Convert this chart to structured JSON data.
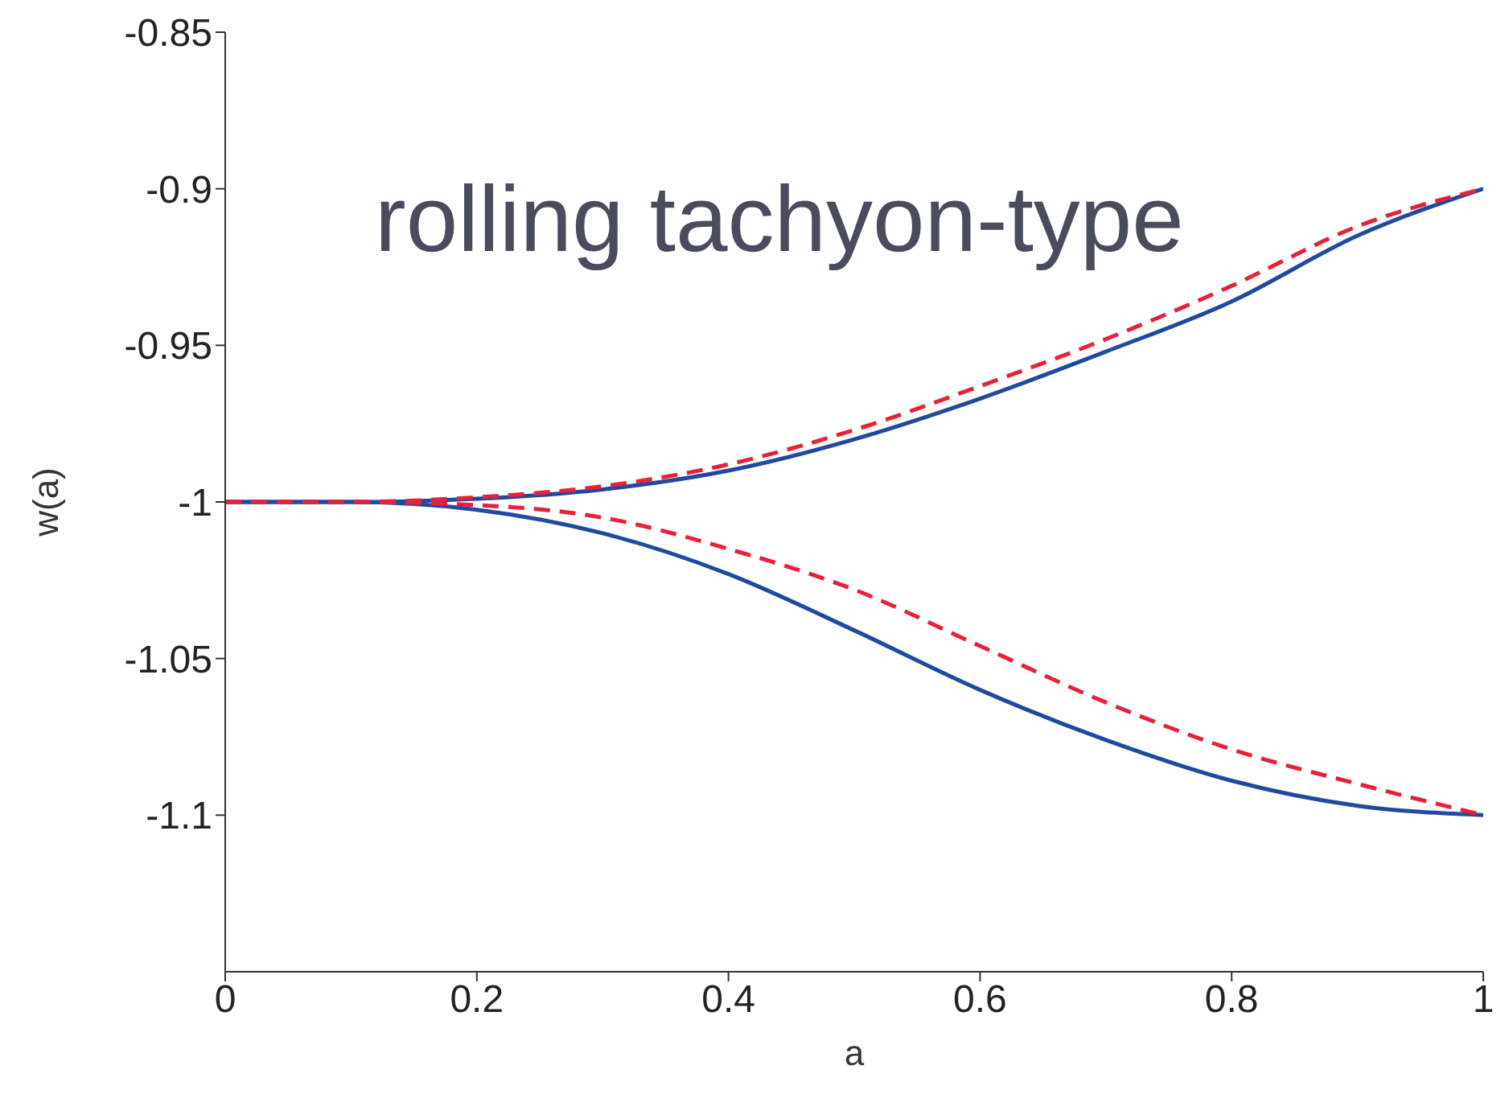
{
  "chart_data": {
    "type": "line",
    "xlabel": "a",
    "ylabel": "w(a)",
    "annotations": [
      "rolling tachyon-type"
    ],
    "xlim": [
      0,
      1
    ],
    "xticks": [
      0,
      0.2,
      0.4,
      0.6,
      0.8,
      1
    ],
    "ylim": [
      -1.15,
      -0.85
    ],
    "yticks": [
      -1.1,
      -1.05,
      -1,
      -0.95,
      -0.9,
      -0.85
    ],
    "grid": false,
    "marker": "none",
    "series": [
      {
        "color": "#1f4aa0",
        "line_style": "solid",
        "x": [
          0,
          0.1,
          0.2,
          0.3,
          0.4,
          0.5,
          0.6,
          0.7,
          0.8,
          0.9,
          1
        ],
        "values": [
          -1,
          -1,
          -0.999,
          -0.996,
          -0.99,
          -0.98,
          -0.967,
          -0.952,
          -0.936,
          -0.915,
          -0.9
        ]
      },
      {
        "color": "#e8203a",
        "line_style": "dashed",
        "x": [
          0,
          0.1,
          0.2,
          0.3,
          0.4,
          0.5,
          0.6,
          0.7,
          0.8,
          0.9,
          1
        ],
        "values": [
          -1,
          -1,
          -0.9985,
          -0.995,
          -0.988,
          -0.977,
          -0.963,
          -0.948,
          -0.931,
          -0.912,
          -0.9
        ]
      },
      {
        "color": "#1f4aa0",
        "line_style": "solid",
        "x": [
          0,
          0.1,
          0.2,
          0.3,
          0.4,
          0.5,
          0.6,
          0.7,
          0.8,
          0.9,
          1
        ],
        "values": [
          -1,
          -1,
          -1.0025,
          -1.01,
          -1.023,
          -1.041,
          -1.06,
          -1.076,
          -1.089,
          -1.097,
          -1.1
        ]
      },
      {
        "color": "#e8203a",
        "line_style": "dashed",
        "x": [
          0,
          0.1,
          0.2,
          0.3,
          0.4,
          0.5,
          0.6,
          0.7,
          0.8,
          0.9,
          1
        ],
        "values": [
          -1,
          -1,
          -1.001,
          -1.005,
          -1.015,
          -1.028,
          -1.046,
          -1.064,
          -1.079,
          -1.09,
          -1.1
        ]
      }
    ]
  }
}
